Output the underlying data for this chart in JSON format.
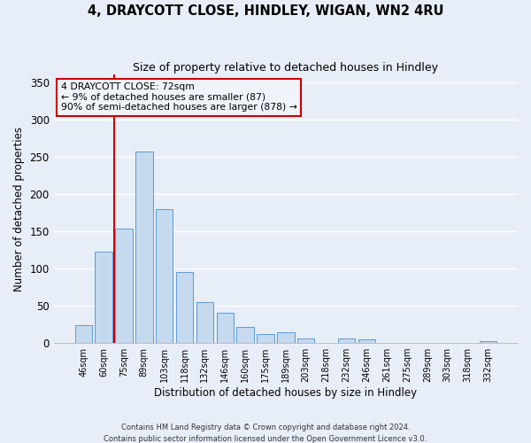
{
  "title": "4, DRAYCOTT CLOSE, HINDLEY, WIGAN, WN2 4RU",
  "subtitle": "Size of property relative to detached houses in Hindley",
  "xlabel": "Distribution of detached houses by size in Hindley",
  "ylabel": "Number of detached properties",
  "bar_labels": [
    "46sqm",
    "60sqm",
    "75sqm",
    "89sqm",
    "103sqm",
    "118sqm",
    "132sqm",
    "146sqm",
    "160sqm",
    "175sqm",
    "189sqm",
    "203sqm",
    "218sqm",
    "232sqm",
    "246sqm",
    "261sqm",
    "275sqm",
    "289sqm",
    "303sqm",
    "318sqm",
    "332sqm"
  ],
  "bar_values": [
    24,
    123,
    153,
    257,
    180,
    95,
    55,
    40,
    22,
    12,
    14,
    6,
    0,
    6,
    5,
    0,
    0,
    0,
    0,
    0,
    2
  ],
  "bar_color": "#c5d9ef",
  "bar_edgecolor": "#5b9bd5",
  "vline_x": 1.5,
  "vline_color": "#cc0000",
  "annotation_title": "4 DRAYCOTT CLOSE: 72sqm",
  "annotation_line1": "← 9% of detached houses are smaller (87)",
  "annotation_line2": "90% of semi-detached houses are larger (878) →",
  "annotation_box_edgecolor": "#cc0000",
  "annotation_box_facecolor": "#f0f4fa",
  "ylim": [
    0,
    360
  ],
  "yticks": [
    0,
    50,
    100,
    150,
    200,
    250,
    300,
    350
  ],
  "footer1": "Contains HM Land Registry data © Crown copyright and database right 2024.",
  "footer2": "Contains public sector information licensed under the Open Government Licence v3.0.",
  "background_color": "#e8eef8",
  "figsize": [
    6.0,
    5.0
  ],
  "dpi": 100
}
